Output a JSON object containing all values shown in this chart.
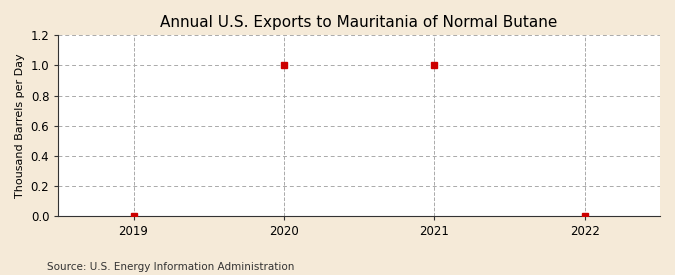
{
  "title": "Annual U.S. Exports to Mauritania of Normal Butane",
  "ylabel": "Thousand Barrels per Day",
  "source": "Source: U.S. Energy Information Administration",
  "x_values": [
    2019,
    2020,
    2021,
    2022
  ],
  "y_values": [
    0,
    1,
    1,
    0
  ],
  "xlim": [
    2018.5,
    2022.5
  ],
  "ylim": [
    0,
    1.2
  ],
  "yticks": [
    0.0,
    0.2,
    0.4,
    0.6,
    0.8,
    1.0,
    1.2
  ],
  "xticks": [
    2019,
    2020,
    2021,
    2022
  ],
  "figure_bg_color": "#f5ead8",
  "plot_bg_color": "#ffffff",
  "grid_color": "#aaaaaa",
  "marker_color": "#cc0000",
  "marker_size": 4,
  "title_fontsize": 11,
  "label_fontsize": 8,
  "tick_fontsize": 8.5,
  "source_fontsize": 7.5
}
